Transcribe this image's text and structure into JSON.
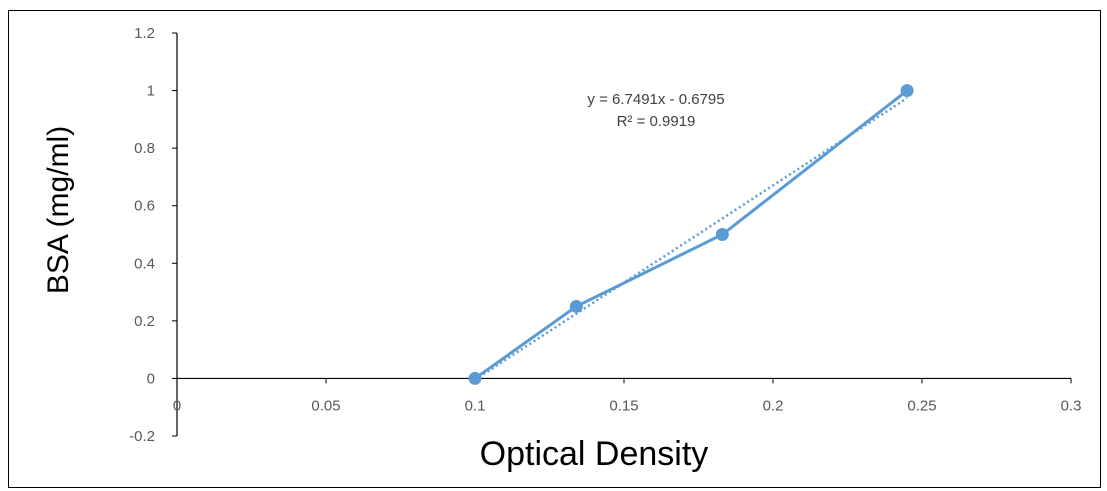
{
  "chart_data": {
    "type": "scatter",
    "xlabel": "Optical Density",
    "ylabel": "BSA (mg/ml)",
    "xlim": [
      0,
      0.3
    ],
    "ylim": [
      -0.2,
      1.2
    ],
    "x_ticks": [
      "0",
      "0.05",
      "0.1",
      "0.15",
      "0.2",
      "0.25",
      "0.3"
    ],
    "y_ticks": [
      "1.2",
      "1",
      "0.8",
      "0.6",
      "0.4",
      "0.2",
      "0",
      "-0.2"
    ],
    "grid": false,
    "series": [
      {
        "points": [
          {
            "x": 0.1,
            "y": 0
          },
          {
            "x": 0.134,
            "y": 0.25
          },
          {
            "x": 0.183,
            "y": 0.5
          },
          {
            "x": 0.245,
            "y": 1
          }
        ],
        "style": "markers-with-line",
        "color": "#5b9bd5"
      }
    ],
    "trendline": {
      "type": "linear",
      "style": "dotted",
      "color": "#5b9bd5",
      "slope": 6.7491,
      "intercept": -0.6795,
      "equation": "y = 6.7491x - 0.6795",
      "r_squared": "R² = 0.9919"
    }
  }
}
